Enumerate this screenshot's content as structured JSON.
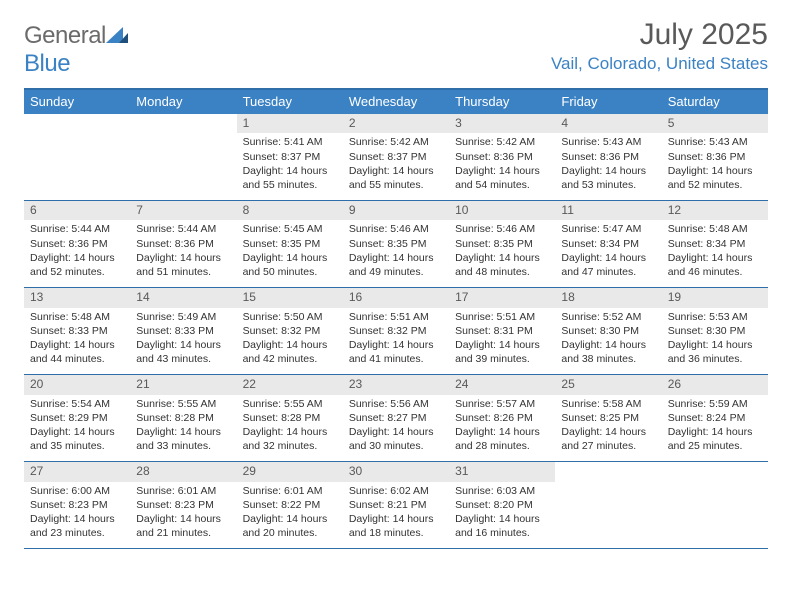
{
  "brand": {
    "part1": "General",
    "part2": "Blue"
  },
  "title": "July 2025",
  "location": "Vail, Colorado, United States",
  "colors": {
    "header_blue": "#3b82c4",
    "border_blue": "#2f6ea8",
    "daynum_bg": "#e9e9e9",
    "text_gray": "#595959"
  },
  "day_names": [
    "Sunday",
    "Monday",
    "Tuesday",
    "Wednesday",
    "Thursday",
    "Friday",
    "Saturday"
  ],
  "weeks": [
    [
      null,
      null,
      {
        "n": "1",
        "sr": "Sunrise: 5:41 AM",
        "ss": "Sunset: 8:37 PM",
        "dl": "Daylight: 14 hours and 55 minutes."
      },
      {
        "n": "2",
        "sr": "Sunrise: 5:42 AM",
        "ss": "Sunset: 8:37 PM",
        "dl": "Daylight: 14 hours and 55 minutes."
      },
      {
        "n": "3",
        "sr": "Sunrise: 5:42 AM",
        "ss": "Sunset: 8:36 PM",
        "dl": "Daylight: 14 hours and 54 minutes."
      },
      {
        "n": "4",
        "sr": "Sunrise: 5:43 AM",
        "ss": "Sunset: 8:36 PM",
        "dl": "Daylight: 14 hours and 53 minutes."
      },
      {
        "n": "5",
        "sr": "Sunrise: 5:43 AM",
        "ss": "Sunset: 8:36 PM",
        "dl": "Daylight: 14 hours and 52 minutes."
      }
    ],
    [
      {
        "n": "6",
        "sr": "Sunrise: 5:44 AM",
        "ss": "Sunset: 8:36 PM",
        "dl": "Daylight: 14 hours and 52 minutes."
      },
      {
        "n": "7",
        "sr": "Sunrise: 5:44 AM",
        "ss": "Sunset: 8:36 PM",
        "dl": "Daylight: 14 hours and 51 minutes."
      },
      {
        "n": "8",
        "sr": "Sunrise: 5:45 AM",
        "ss": "Sunset: 8:35 PM",
        "dl": "Daylight: 14 hours and 50 minutes."
      },
      {
        "n": "9",
        "sr": "Sunrise: 5:46 AM",
        "ss": "Sunset: 8:35 PM",
        "dl": "Daylight: 14 hours and 49 minutes."
      },
      {
        "n": "10",
        "sr": "Sunrise: 5:46 AM",
        "ss": "Sunset: 8:35 PM",
        "dl": "Daylight: 14 hours and 48 minutes."
      },
      {
        "n": "11",
        "sr": "Sunrise: 5:47 AM",
        "ss": "Sunset: 8:34 PM",
        "dl": "Daylight: 14 hours and 47 minutes."
      },
      {
        "n": "12",
        "sr": "Sunrise: 5:48 AM",
        "ss": "Sunset: 8:34 PM",
        "dl": "Daylight: 14 hours and 46 minutes."
      }
    ],
    [
      {
        "n": "13",
        "sr": "Sunrise: 5:48 AM",
        "ss": "Sunset: 8:33 PM",
        "dl": "Daylight: 14 hours and 44 minutes."
      },
      {
        "n": "14",
        "sr": "Sunrise: 5:49 AM",
        "ss": "Sunset: 8:33 PM",
        "dl": "Daylight: 14 hours and 43 minutes."
      },
      {
        "n": "15",
        "sr": "Sunrise: 5:50 AM",
        "ss": "Sunset: 8:32 PM",
        "dl": "Daylight: 14 hours and 42 minutes."
      },
      {
        "n": "16",
        "sr": "Sunrise: 5:51 AM",
        "ss": "Sunset: 8:32 PM",
        "dl": "Daylight: 14 hours and 41 minutes."
      },
      {
        "n": "17",
        "sr": "Sunrise: 5:51 AM",
        "ss": "Sunset: 8:31 PM",
        "dl": "Daylight: 14 hours and 39 minutes."
      },
      {
        "n": "18",
        "sr": "Sunrise: 5:52 AM",
        "ss": "Sunset: 8:30 PM",
        "dl": "Daylight: 14 hours and 38 minutes."
      },
      {
        "n": "19",
        "sr": "Sunrise: 5:53 AM",
        "ss": "Sunset: 8:30 PM",
        "dl": "Daylight: 14 hours and 36 minutes."
      }
    ],
    [
      {
        "n": "20",
        "sr": "Sunrise: 5:54 AM",
        "ss": "Sunset: 8:29 PM",
        "dl": "Daylight: 14 hours and 35 minutes."
      },
      {
        "n": "21",
        "sr": "Sunrise: 5:55 AM",
        "ss": "Sunset: 8:28 PM",
        "dl": "Daylight: 14 hours and 33 minutes."
      },
      {
        "n": "22",
        "sr": "Sunrise: 5:55 AM",
        "ss": "Sunset: 8:28 PM",
        "dl": "Daylight: 14 hours and 32 minutes."
      },
      {
        "n": "23",
        "sr": "Sunrise: 5:56 AM",
        "ss": "Sunset: 8:27 PM",
        "dl": "Daylight: 14 hours and 30 minutes."
      },
      {
        "n": "24",
        "sr": "Sunrise: 5:57 AM",
        "ss": "Sunset: 8:26 PM",
        "dl": "Daylight: 14 hours and 28 minutes."
      },
      {
        "n": "25",
        "sr": "Sunrise: 5:58 AM",
        "ss": "Sunset: 8:25 PM",
        "dl": "Daylight: 14 hours and 27 minutes."
      },
      {
        "n": "26",
        "sr": "Sunrise: 5:59 AM",
        "ss": "Sunset: 8:24 PM",
        "dl": "Daylight: 14 hours and 25 minutes."
      }
    ],
    [
      {
        "n": "27",
        "sr": "Sunrise: 6:00 AM",
        "ss": "Sunset: 8:23 PM",
        "dl": "Daylight: 14 hours and 23 minutes."
      },
      {
        "n": "28",
        "sr": "Sunrise: 6:01 AM",
        "ss": "Sunset: 8:23 PM",
        "dl": "Daylight: 14 hours and 21 minutes."
      },
      {
        "n": "29",
        "sr": "Sunrise: 6:01 AM",
        "ss": "Sunset: 8:22 PM",
        "dl": "Daylight: 14 hours and 20 minutes."
      },
      {
        "n": "30",
        "sr": "Sunrise: 6:02 AM",
        "ss": "Sunset: 8:21 PM",
        "dl": "Daylight: 14 hours and 18 minutes."
      },
      {
        "n": "31",
        "sr": "Sunrise: 6:03 AM",
        "ss": "Sunset: 8:20 PM",
        "dl": "Daylight: 14 hours and 16 minutes."
      },
      null,
      null
    ]
  ]
}
